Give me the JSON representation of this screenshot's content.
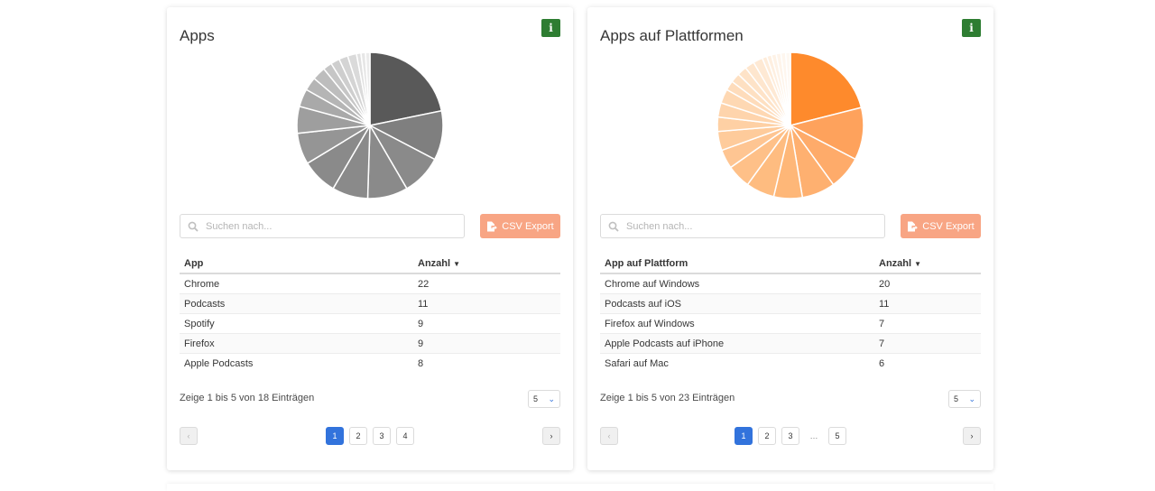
{
  "cards": [
    {
      "title": "Apps",
      "info_label": "i",
      "search_placeholder": "Suchen nach...",
      "csv_label": "CSV Export",
      "columns": [
        "App",
        "Anzahl"
      ],
      "rows": [
        [
          "Chrome",
          "22"
        ],
        [
          "Podcasts",
          "11"
        ],
        [
          "Spotify",
          "9"
        ],
        [
          "Firefox",
          "9"
        ],
        [
          "Apple Podcasts",
          "8"
        ]
      ],
      "info_text": "Zeige 1 bis 5 von 18 Einträgen",
      "per_page": "5",
      "pages": [
        "1",
        "2",
        "3",
        "4"
      ],
      "current_page": "1",
      "chart_data": {
        "type": "pie",
        "values": [
          22,
          11,
          9,
          9,
          8,
          8,
          7,
          6,
          4,
          3,
          3,
          2,
          2,
          2,
          2,
          1,
          1,
          1
        ],
        "colors": [
          "#595959",
          "#7f7f7f",
          "#8a8a8a",
          "#8a8a8a",
          "#8a8a8a",
          "#8a8a8a",
          "#959595",
          "#9e9e9e",
          "#a9a9a9",
          "#b5b5b5",
          "#bdbdbd",
          "#c6c6c6",
          "#cecece",
          "#d4d4d4",
          "#dadada",
          "#e0e0e0",
          "#e6e6e6",
          "#ebebeb"
        ]
      }
    },
    {
      "title": "Apps auf Plattformen",
      "info_label": "i",
      "search_placeholder": "Suchen nach...",
      "csv_label": "CSV Export",
      "columns": [
        "App auf Plattform",
        "Anzahl"
      ],
      "rows": [
        [
          "Chrome auf Windows",
          "20"
        ],
        [
          "Podcasts auf iOS",
          "11"
        ],
        [
          "Firefox auf Windows",
          "7"
        ],
        [
          "Apple Podcasts auf iPhone",
          "7"
        ],
        [
          "Safari auf Mac",
          "6"
        ]
      ],
      "info_text": "Zeige 1 bis 5 von 23 Einträgen",
      "per_page": "5",
      "pages": [
        "1",
        "2",
        "3",
        "…",
        "5"
      ],
      "current_page": "1",
      "chart_data": {
        "type": "pie",
        "values": [
          20,
          11,
          7,
          7,
          6,
          6,
          5,
          4,
          4,
          3,
          3,
          3,
          2,
          2,
          2,
          2,
          2,
          1,
          1,
          1,
          1,
          1,
          1
        ],
        "colors": [
          "#fe8a2c",
          "#fea25c",
          "#feab6a",
          "#feb070",
          "#feb778",
          "#febc80",
          "#fec088",
          "#fec592",
          "#fecb9b",
          "#fed0a4",
          "#fed4ac",
          "#fed8b3",
          "#fedcbb",
          "#fee0c2",
          "#fee3c8",
          "#fee6ce",
          "#fee9d4",
          "#feecda",
          "#feefe0",
          "#fef2e6",
          "#fef4ea",
          "#fef6ee",
          "#fef8f2"
        ]
      }
    }
  ]
}
